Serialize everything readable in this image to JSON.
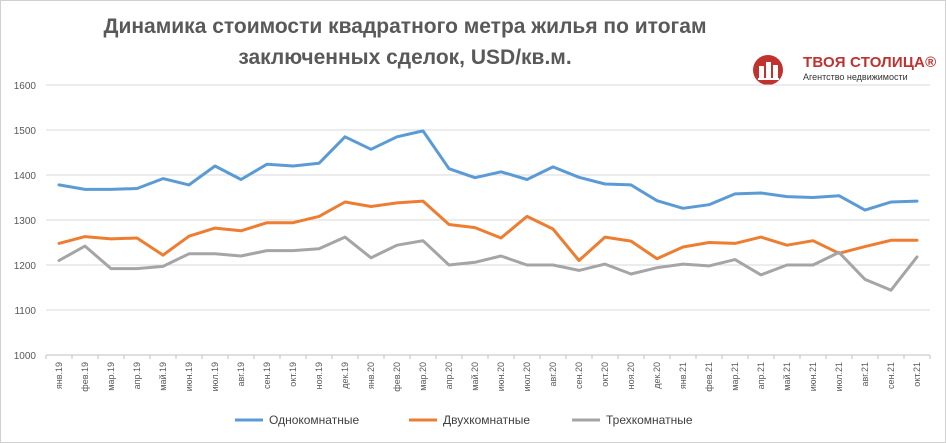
{
  "chart_data": {
    "type": "line",
    "title": "Динамика стоимости квадратного метра жилья по итогам заключенных сделок, USD/кв.м.",
    "title_lines": [
      "Динамика стоимости квадратного метра жилья по итогам",
      "заключенных сделок, USD/кв.м."
    ],
    "xlabel": "",
    "ylabel": "",
    "ylim": [
      1000,
      1600
    ],
    "yticks": [
      1000,
      1100,
      1200,
      1300,
      1400,
      1500,
      1600
    ],
    "grid": true,
    "legend_position": "bottom",
    "categories": [
      "янв.19",
      "фев.19",
      "мар.19",
      "апр.19",
      "май.19",
      "июн.19",
      "июл.19",
      "авг.19",
      "сен.19",
      "окт.19",
      "ноя.19",
      "дек.19",
      "янв.20",
      "фев.20",
      "мар.20",
      "апр.20",
      "май.20",
      "июн.20",
      "июл.20",
      "авг.20",
      "сен.20",
      "окт.20",
      "ноя.20",
      "дек.20",
      "янв.21",
      "фев.21",
      "мар.21",
      "апр.21",
      "май.21",
      "июн.21",
      "июл.21",
      "авг.21",
      "сен.21",
      "окт.21"
    ],
    "series": [
      {
        "name": "Однокомнатные",
        "color": "#5b9bd5",
        "values": [
          1378,
          1368,
          1368,
          1370,
          1392,
          1378,
          1420,
          1390,
          1424,
          1420,
          1426,
          1485,
          1457,
          1485,
          1498,
          1414,
          1394,
          1407,
          1390,
          1418,
          1395,
          1380,
          1378,
          1343,
          1326,
          1334,
          1358,
          1360,
          1352,
          1350,
          1354,
          1322,
          1340,
          1342
        ]
      },
      {
        "name": "Двухкомнатные",
        "color": "#ed7d31",
        "values": [
          1248,
          1263,
          1258,
          1260,
          1222,
          1264,
          1282,
          1276,
          1294,
          1294,
          1308,
          1340,
          1330,
          1338,
          1342,
          1290,
          1283,
          1260,
          1308,
          1280,
          1210,
          1262,
          1253,
          1214,
          1240,
          1250,
          1248,
          1262,
          1244,
          1254,
          1226,
          1241,
          1255,
          1255
        ]
      },
      {
        "name": "Трехкомнатные",
        "color": "#a5a5a5",
        "values": [
          1210,
          1242,
          1192,
          1192,
          1197,
          1225,
          1225,
          1220,
          1232,
          1232,
          1236,
          1262,
          1216,
          1244,
          1254,
          1200,
          1206,
          1220,
          1200,
          1200,
          1188,
          1202,
          1180,
          1194,
          1202,
          1198,
          1212,
          1178,
          1200,
          1200,
          1228,
          1168,
          1144,
          1218
        ]
      }
    ]
  },
  "logo": {
    "name": "ТВОЯ СТОЛИЦА®",
    "subtitle": "Агентство недвижимости",
    "color": "#c0312f"
  }
}
